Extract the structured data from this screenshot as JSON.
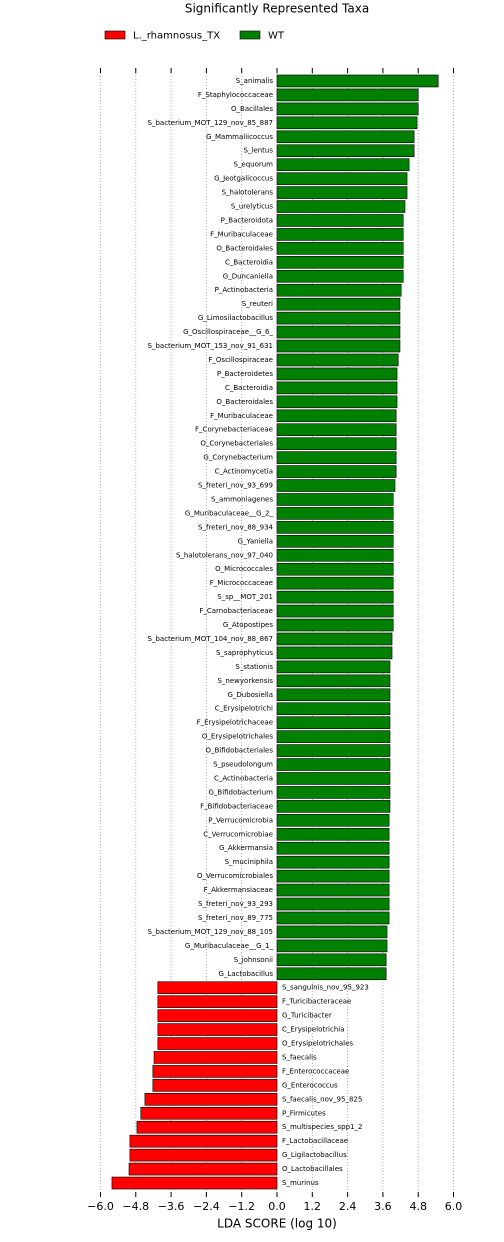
{
  "chart_data": {
    "type": "lda_bar",
    "title": "Significantly Represented Taxa",
    "x_label": "LDA SCORE (log 10)",
    "xlim": [
      -6.4,
      6.4
    ],
    "xticks": [
      {
        "value": -6,
        "label": "−6.0"
      },
      {
        "value": -4.8,
        "label": "−4.8"
      },
      {
        "value": -3.6,
        "label": "−3.6"
      },
      {
        "value": -2.4,
        "label": "−2.4"
      },
      {
        "value": -1.2,
        "label": "−1.2"
      },
      {
        "value": 0,
        "label": "0.0"
      },
      1.2,
      2.4,
      3.6,
      4.8,
      {
        "value": 6,
        "label": "6.0"
      }
    ],
    "grid": true,
    "series": [
      {
        "name": "L._rhamnosus_TX",
        "color": "#ff0000",
        "categories": [
          "S_sanguinis_nov_95_923",
          "F_Turicibacteraceae",
          "G_Turicibacter",
          "C_Erysipelotrichia",
          "O_Erysipelotrichales",
          "S_faecalis",
          "F_Enterococcaceae",
          "G_Enterococcus",
          "S_faecalis_nov_95_825",
          "P_Firmicutes",
          "S_multispecies_spp1_2",
          "F_Lactobacillaceae",
          "G_Ligilactobacillus",
          "O_Lactobacillales",
          "S_murinus"
        ],
        "values": [
          -4.05,
          -4.05,
          -4.05,
          -4.05,
          -4.05,
          -4.18,
          -4.22,
          -4.22,
          -4.49,
          -4.63,
          -4.76,
          -5.0,
          -5.0,
          -5.03,
          -5.61
        ]
      },
      {
        "name": "WT",
        "color": "#008000",
        "categories": [
          "S_animalis",
          "F_Staphylococcaceae",
          "O_Bacillales",
          "S_bacterium_MOT_129_nov_85_887",
          "G_Mammaliicoccus",
          "S_lentus",
          "S_equorum",
          "G_Jeotgalicoccus",
          "S_halotolerans",
          "S_urelyticus",
          "P_Bacteroidota",
          "F_Muribaculaceae",
          "O_Bacteroidales",
          "C_Bacteroidia",
          "G_Duncaniella",
          "P_Actinobacteria",
          "S_reuteri",
          "G_Limosilactobacillus",
          "G_Oscillospiraceae__G_6_",
          "S_bacterium_MOT_153_nov_91_631",
          "F_Oscillospiraceae",
          "P_Bacteroidetes",
          "C_Bacteroidia",
          "O_Bacteroidales",
          "F_Muribaculaceae",
          "F_Corynebacteriaceae",
          "O_Corynebacteriales",
          "G_Corynebacterium",
          "C_Actinomycetia",
          "S_freteri_nov_93_699",
          "S_ammoniagenes",
          "G_Muribaculaceae__G_2_",
          "S_freteri_nov_88_934",
          "G_Yaniella",
          "S_halotolerans_nov_97_040",
          "O_Micrococcales",
          "F_Micrococcaceae",
          "S_sp__MOT_201",
          "F_Carnobacteriaceae",
          "G_Atopostipes",
          "S_bacterium_MOT_104_nov_88_867",
          "S_saprophyticus",
          "S_stationis",
          "S_newyorkensis",
          "G_Dubosiella",
          "C_Erysipelotrichi",
          "F_Erysipelotrichaceae",
          "O_Erysipelotrichales",
          "O_Bifidobacteriales",
          "S_pseudolongum",
          "C_Actinobacteria",
          "G_Bifidobacterium",
          "F_Bifidobacteriaceae",
          "P_Verrucomicrobia",
          "C_Verrucomicrobiae",
          "G_Akkermansia",
          "S_muciniphila",
          "O_Verrucomicrobiales",
          "F_Akkermansiaceae",
          "S_freteri_nov_93_293",
          "S_freteri_nov_89_775",
          "S_bacterium_MOT_129_nov_88_105",
          "G_Muribaculaceae__G_1_",
          "S_johnsonii",
          "G_Lactobacillus"
        ],
        "values": [
          5.48,
          4.8,
          4.8,
          4.76,
          4.66,
          4.66,
          4.49,
          4.42,
          4.42,
          4.35,
          4.29,
          4.29,
          4.29,
          4.29,
          4.29,
          4.22,
          4.18,
          4.18,
          4.18,
          4.18,
          4.12,
          4.08,
          4.08,
          4.08,
          4.05,
          4.05,
          4.05,
          4.05,
          4.05,
          4.01,
          3.95,
          3.95,
          3.95,
          3.95,
          3.95,
          3.95,
          3.95,
          3.95,
          3.95,
          3.95,
          3.91,
          3.91,
          3.84,
          3.84,
          3.84,
          3.84,
          3.84,
          3.84,
          3.84,
          3.84,
          3.84,
          3.84,
          3.84,
          3.81,
          3.81,
          3.81,
          3.81,
          3.81,
          3.81,
          3.81,
          3.81,
          3.74,
          3.74,
          3.71,
          3.71
        ]
      }
    ]
  }
}
